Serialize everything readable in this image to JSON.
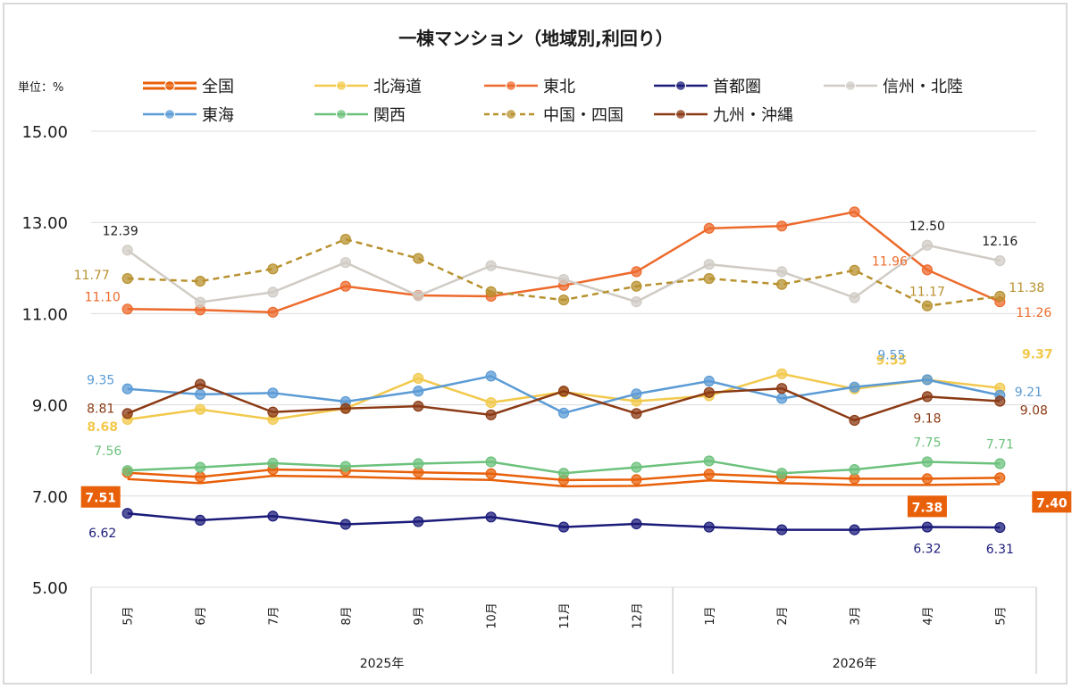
{
  "chart_data": {
    "type": "line",
    "title": "一棟マンション（地域別,利回り）",
    "unit_label": "単位：%",
    "ylim": [
      5,
      15
    ],
    "yticks": [
      "5.00",
      "7.00",
      "9.00",
      "11.00",
      "13.00",
      "15.00"
    ],
    "categories": [
      "5月",
      "6月",
      "7月",
      "8月",
      "9月",
      "10月",
      "11月",
      "12月",
      "1月",
      "2月",
      "3月",
      "4月",
      "5月"
    ],
    "year_groups": [
      {
        "label": "2025年",
        "count": 8
      },
      {
        "label": "2026年",
        "count": 5
      }
    ],
    "legend_position": "top",
    "grid": true,
    "series": [
      {
        "name": "全国",
        "color": "#e8600a",
        "style": "double",
        "values": [
          7.51,
          7.42,
          7.58,
          7.56,
          7.52,
          7.49,
          7.35,
          7.36,
          7.48,
          7.42,
          7.38,
          7.38,
          7.4
        ]
      },
      {
        "name": "北海道",
        "color": "#f2c94c",
        "values": [
          8.68,
          8.9,
          8.68,
          8.92,
          9.58,
          9.05,
          9.28,
          9.08,
          9.2,
          9.68,
          9.35,
          9.55,
          9.37
        ]
      },
      {
        "name": "東北",
        "color": "#ed6a2c",
        "values": [
          11.1,
          11.08,
          11.03,
          11.6,
          11.4,
          11.38,
          11.62,
          11.92,
          12.87,
          12.92,
          13.23,
          11.96,
          11.26
        ]
      },
      {
        "name": "首都圏",
        "color": "#1b1b7a",
        "values": [
          6.62,
          6.47,
          6.56,
          6.38,
          6.44,
          6.54,
          6.32,
          6.39,
          6.32,
          6.26,
          6.26,
          6.32,
          6.31
        ]
      },
      {
        "name": "信州・北陸",
        "color": "#d0cbc4",
        "values": [
          12.39,
          11.25,
          11.47,
          12.12,
          11.39,
          12.05,
          11.75,
          11.26,
          12.08,
          11.92,
          11.35,
          12.5,
          12.16
        ]
      },
      {
        "name": "東海",
        "color": "#5b9bd5",
        "values": [
          9.35,
          9.23,
          9.26,
          9.07,
          9.3,
          9.63,
          8.82,
          9.24,
          9.52,
          9.14,
          9.39,
          9.55,
          9.21
        ]
      },
      {
        "name": "関西",
        "color": "#6cc17c",
        "values": [
          7.56,
          7.63,
          7.72,
          7.65,
          7.71,
          7.75,
          7.5,
          7.63,
          7.77,
          7.5,
          7.58,
          7.75,
          7.71
        ]
      },
      {
        "name": "中国・四国",
        "color": "#b8912f",
        "style": "dashed",
        "values": [
          11.77,
          11.71,
          11.98,
          12.63,
          12.21,
          11.48,
          11.3,
          11.6,
          11.77,
          11.64,
          11.95,
          11.17,
          11.38
        ]
      },
      {
        "name": "九州・沖縄",
        "color": "#8b3a14",
        "values": [
          8.81,
          9.45,
          8.84,
          8.92,
          8.97,
          8.78,
          9.3,
          8.81,
          9.27,
          9.36,
          8.66,
          9.18,
          9.08
        ]
      }
    ],
    "annotations": [
      {
        "series": 0,
        "index": 0,
        "text": "7.51",
        "boxed": true
      },
      {
        "series": 0,
        "index": 11,
        "text": "7.38",
        "boxed": true
      },
      {
        "series": 0,
        "index": 12,
        "text": "7.40",
        "boxed": true
      },
      {
        "series": 1,
        "index": 0,
        "text": "8.68",
        "bold": true
      },
      {
        "series": 1,
        "index": 11,
        "text": "9.55",
        "bold": true
      },
      {
        "series": 1,
        "index": 12,
        "text": "9.37",
        "bold": true
      },
      {
        "series": 2,
        "index": 0,
        "text": "11.10"
      },
      {
        "series": 2,
        "index": 11,
        "text": "11.96"
      },
      {
        "series": 2,
        "index": 12,
        "text": "11.26"
      },
      {
        "series": 3,
        "index": 0,
        "text": "6.62"
      },
      {
        "series": 3,
        "index": 11,
        "text": "6.32"
      },
      {
        "series": 3,
        "index": 12,
        "text": "6.31"
      },
      {
        "series": 4,
        "index": 0,
        "text": "12.39"
      },
      {
        "series": 4,
        "index": 11,
        "text": "12.50"
      },
      {
        "series": 4,
        "index": 12,
        "text": "12.16"
      },
      {
        "series": 5,
        "index": 0,
        "text": "9.35"
      },
      {
        "series": 5,
        "index": 11,
        "text": "9.55"
      },
      {
        "series": 5,
        "index": 12,
        "text": "9.21"
      },
      {
        "series": 6,
        "index": 0,
        "text": "7.56"
      },
      {
        "series": 6,
        "index": 11,
        "text": "7.75"
      },
      {
        "series": 6,
        "index": 12,
        "text": "7.71"
      },
      {
        "series": 7,
        "index": 0,
        "text": "11.77"
      },
      {
        "series": 7,
        "index": 11,
        "text": "11.17"
      },
      {
        "series": 7,
        "index": 12,
        "text": "11.38"
      },
      {
        "series": 8,
        "index": 0,
        "text": "8.81"
      },
      {
        "series": 8,
        "index": 11,
        "text": "9.18"
      },
      {
        "series": 8,
        "index": 12,
        "text": "9.08"
      }
    ]
  }
}
